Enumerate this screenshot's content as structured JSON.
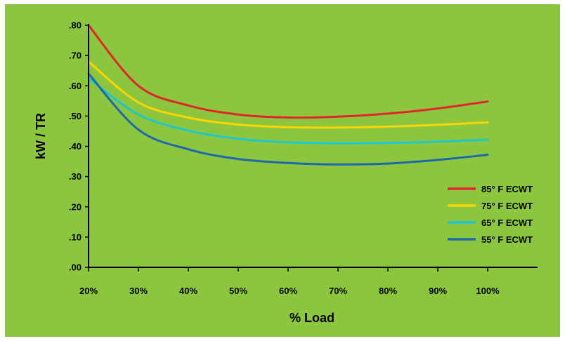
{
  "chart_data": {
    "type": "line",
    "title": "",
    "xlabel": "% Load",
    "ylabel": "kW / TR",
    "x": [
      20,
      30,
      40,
      50,
      60,
      70,
      80,
      90,
      100
    ],
    "x_tick_labels": [
      "20%",
      "30%",
      "40%",
      "50%",
      "60%",
      "70%",
      "80%",
      "90%",
      "100%"
    ],
    "xlim": [
      20,
      100
    ],
    "y_ticks": [
      0,
      0.1,
      0.2,
      0.3,
      0.4,
      0.5,
      0.6,
      0.7,
      0.8
    ],
    "y_tick_labels": [
      ".00",
      ".10",
      ".20",
      ".30",
      ".40",
      ".50",
      ".60",
      ".70",
      ".80"
    ],
    "ylim": [
      0,
      0.8
    ],
    "grid": false,
    "legend_position": "right",
    "series": [
      {
        "name": "85° F ECWT",
        "color": "#e3242b",
        "values": [
          0.8,
          0.6,
          0.535,
          0.505,
          0.495,
          0.498,
          0.508,
          0.525,
          0.548
        ]
      },
      {
        "name": "75° F ECWT",
        "color": "#ffd500",
        "values": [
          0.68,
          0.545,
          0.495,
          0.472,
          0.463,
          0.462,
          0.465,
          0.471,
          0.479
        ]
      },
      {
        "name": "65° F ECWT",
        "color": "#1ec6cf",
        "values": [
          0.625,
          0.505,
          0.452,
          0.425,
          0.413,
          0.41,
          0.411,
          0.415,
          0.422
        ]
      },
      {
        "name": "55° F ECWT",
        "color": "#1d67ad",
        "values": [
          0.64,
          0.455,
          0.39,
          0.358,
          0.345,
          0.34,
          0.343,
          0.355,
          0.372
        ]
      }
    ]
  }
}
